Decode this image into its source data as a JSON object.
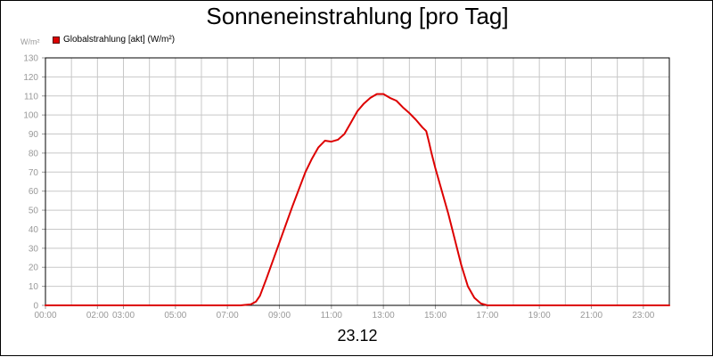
{
  "chart_data": {
    "type": "line",
    "title": "Sonneneinstrahlung [pro Tag]",
    "ylabel": "W/m²",
    "xlabel": "23.12",
    "ylim": [
      0,
      130
    ],
    "xlim": [
      0,
      24
    ],
    "y_ticks": [
      0,
      10,
      20,
      30,
      40,
      50,
      60,
      70,
      80,
      90,
      100,
      110,
      120,
      130
    ],
    "x_tick_labels": [
      {
        "t": 0,
        "label": "00:00"
      },
      {
        "t": 2,
        "label": "02:00"
      },
      {
        "t": 3,
        "label": "03:00"
      },
      {
        "t": 5,
        "label": "05:00"
      },
      {
        "t": 7,
        "label": "07:00"
      },
      {
        "t": 9,
        "label": "09:00"
      },
      {
        "t": 11,
        "label": "11:00"
      },
      {
        "t": 13,
        "label": "13:00"
      },
      {
        "t": 15,
        "label": "15:00"
      },
      {
        "t": 17,
        "label": "17:00"
      },
      {
        "t": 19,
        "label": "19:00"
      },
      {
        "t": 21,
        "label": "21:00"
      },
      {
        "t": 23,
        "label": "23:00"
      }
    ],
    "grid": true,
    "legend_position": "top-left",
    "series": [
      {
        "name": "Globalstrahlung [akt] (W/m²)",
        "color": "#dd0000",
        "points": [
          [
            0,
            0
          ],
          [
            7.5,
            0
          ],
          [
            7.9,
            0.5
          ],
          [
            8.1,
            2
          ],
          [
            8.25,
            5
          ],
          [
            8.5,
            14
          ],
          [
            9.0,
            33
          ],
          [
            9.5,
            52
          ],
          [
            10.0,
            70
          ],
          [
            10.25,
            77
          ],
          [
            10.5,
            83
          ],
          [
            10.75,
            86.5
          ],
          [
            11.0,
            86
          ],
          [
            11.25,
            87
          ],
          [
            11.5,
            90
          ],
          [
            11.75,
            96
          ],
          [
            12.0,
            102
          ],
          [
            12.25,
            106
          ],
          [
            12.5,
            109
          ],
          [
            12.75,
            111
          ],
          [
            13.0,
            111
          ],
          [
            13.25,
            109
          ],
          [
            13.5,
            107.5
          ],
          [
            13.75,
            104
          ],
          [
            14.0,
            101
          ],
          [
            14.25,
            97.5
          ],
          [
            14.5,
            93.5
          ],
          [
            14.65,
            91.5
          ],
          [
            14.75,
            86
          ],
          [
            14.85,
            80
          ],
          [
            15.0,
            72
          ],
          [
            15.5,
            48
          ],
          [
            16.0,
            21
          ],
          [
            16.25,
            10
          ],
          [
            16.5,
            4
          ],
          [
            16.75,
            1
          ],
          [
            17.0,
            0
          ],
          [
            24,
            0
          ]
        ]
      }
    ]
  }
}
